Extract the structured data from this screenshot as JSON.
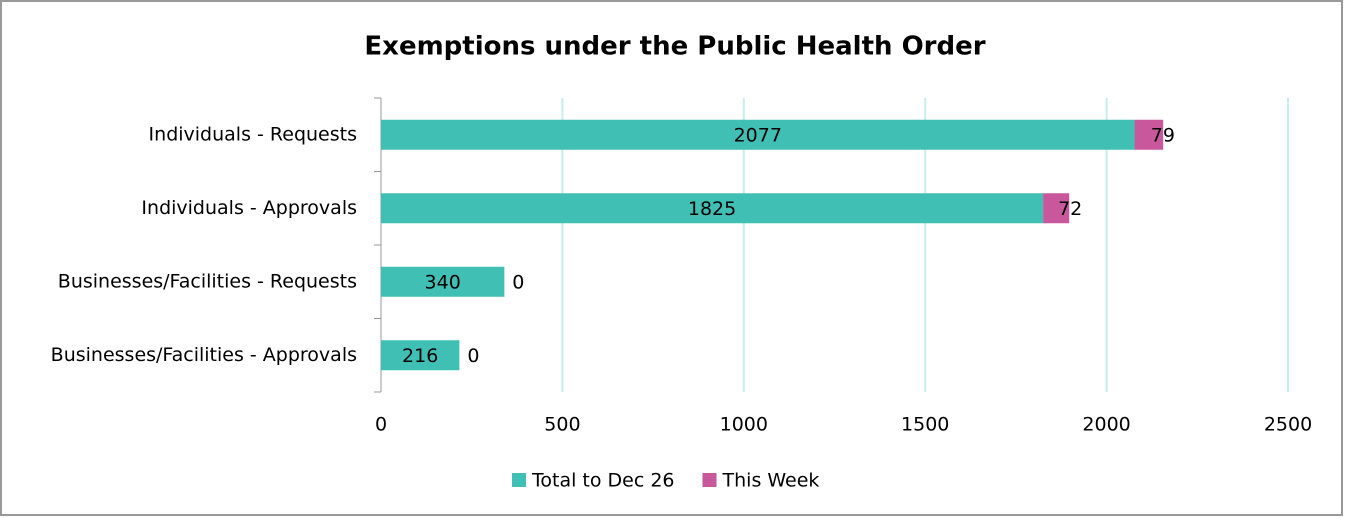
{
  "chart_data": {
    "type": "stacked-bar-horizontal",
    "title": "Exemptions under the Public Health Order",
    "categories": [
      "Individuals - Requests",
      "Individuals - Approvals",
      "Businesses/Facilities - Requests",
      "Businesses/Facilities - Approvals"
    ],
    "series": [
      {
        "name": "Total to Dec 26",
        "color": "#40bfb4",
        "values": [
          2077,
          1825,
          340,
          216
        ]
      },
      {
        "name": "This Week",
        "color": "#c8589b",
        "values": [
          79,
          72,
          0,
          0
        ]
      }
    ],
    "xlim": [
      0,
      2500
    ],
    "xticks": [
      0,
      500,
      1000,
      1500,
      2000,
      2500
    ],
    "grid": true,
    "legend": "bottom"
  }
}
